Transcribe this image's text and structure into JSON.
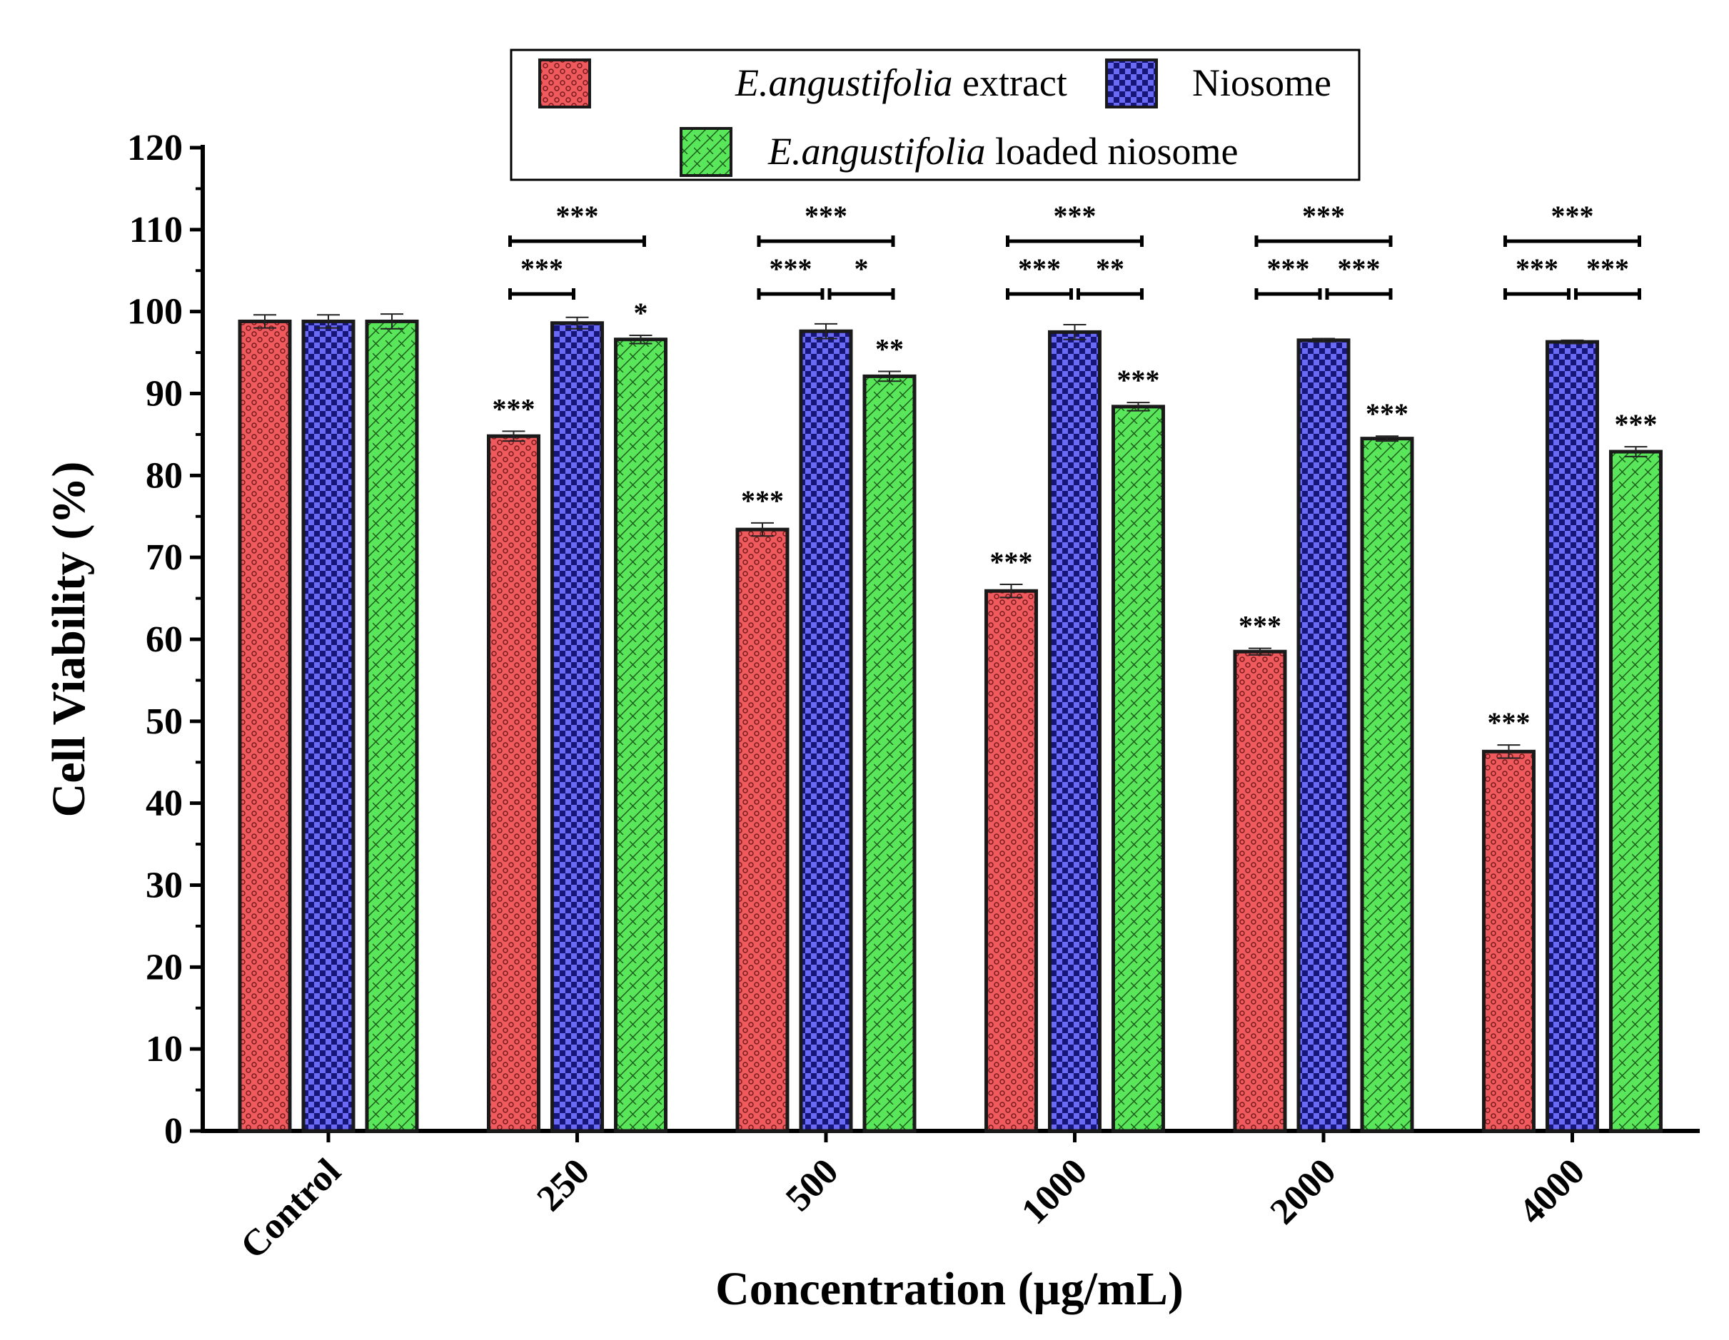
{
  "chart_data": {
    "type": "bar",
    "title": "",
    "xlabel": "Concentration (µg/mL)",
    "ylabel": "Cell Viability (%)",
    "ylim": [
      0,
      120
    ],
    "yticks": [
      0,
      10,
      20,
      30,
      40,
      50,
      60,
      70,
      80,
      90,
      100,
      110,
      120
    ],
    "categories": [
      "Control",
      "250",
      "500",
      "1000",
      "2000",
      "4000"
    ],
    "legend_placement": "top-center",
    "series": [
      {
        "name": "E.angustifolia extract",
        "name_italic": "E.angustifolia",
        "name_rest": " extract",
        "color": "#e8494e",
        "values": [
          98.8,
          84.8,
          73.4,
          65.9,
          58.5,
          46.3
        ],
        "errors": [
          0.8,
          0.6,
          0.8,
          0.8,
          0.4,
          0.8
        ],
        "labels": [
          "",
          "***",
          "***",
          "***",
          "***",
          "***"
        ]
      },
      {
        "name": "Niosome",
        "name_italic": "",
        "name_rest": "Niosome",
        "color": "#5a5af0",
        "values": [
          98.8,
          98.6,
          97.6,
          97.5,
          96.5,
          96.3
        ],
        "errors": [
          0.8,
          0.7,
          0.9,
          0.9,
          0.2,
          0.2
        ],
        "labels": [
          "",
          "",
          "",
          "",
          "",
          ""
        ]
      },
      {
        "name": "E.angustifolia loaded niosome",
        "name_italic": "E.angustifolia",
        "name_rest": " loaded niosome",
        "color": "#4fe04f",
        "values": [
          98.8,
          96.6,
          92.1,
          88.4,
          84.5,
          82.9
        ],
        "errors": [
          0.9,
          0.5,
          0.6,
          0.5,
          0.3,
          0.6
        ],
        "labels": [
          "",
          "*",
          "**",
          "***",
          "***",
          "***"
        ]
      }
    ],
    "comparisons": [
      {
        "group": 1,
        "top": "***",
        "left": "***",
        "right": ""
      },
      {
        "group": 2,
        "top": "***",
        "left": "***",
        "right": "*"
      },
      {
        "group": 3,
        "top": "***",
        "left": "***",
        "right": "**"
      },
      {
        "group": 4,
        "top": "***",
        "left": "***",
        "right": "***"
      },
      {
        "group": 5,
        "top": "***",
        "left": "***",
        "right": "***"
      }
    ]
  }
}
